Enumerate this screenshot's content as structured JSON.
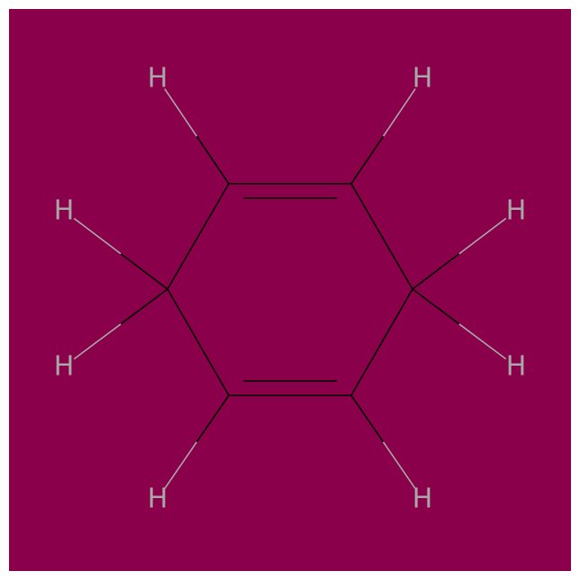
{
  "molecule": {
    "background_color": "#8b004b",
    "bond_color": "#000000",
    "hydrogen_color": "#a8a8a8",
    "atoms": [
      {
        "id": "C1",
        "element": "C",
        "label": ""
      },
      {
        "id": "C2",
        "element": "C",
        "label": ""
      },
      {
        "id": "C3",
        "element": "C",
        "label": ""
      },
      {
        "id": "C4",
        "element": "C",
        "label": ""
      },
      {
        "id": "C5",
        "element": "C",
        "label": ""
      },
      {
        "id": "C6",
        "element": "C",
        "label": ""
      },
      {
        "id": "H1",
        "element": "H",
        "label": "H"
      },
      {
        "id": "H2",
        "element": "H",
        "label": "H"
      },
      {
        "id": "H3",
        "element": "H",
        "label": "H"
      },
      {
        "id": "H4",
        "element": "H",
        "label": "H"
      },
      {
        "id": "H5",
        "element": "H",
        "label": "H"
      },
      {
        "id": "H6",
        "element": "H",
        "label": "H"
      },
      {
        "id": "H7",
        "element": "H",
        "label": "H"
      },
      {
        "id": "H8",
        "element": "H",
        "label": "H"
      }
    ],
    "bonds": [
      {
        "from": "C1",
        "to": "C2",
        "order": 2
      },
      {
        "from": "C2",
        "to": "C3",
        "order": 1
      },
      {
        "from": "C3",
        "to": "C4",
        "order": 1
      },
      {
        "from": "C4",
        "to": "C5",
        "order": 2
      },
      {
        "from": "C5",
        "to": "C6",
        "order": 1
      },
      {
        "from": "C6",
        "to": "C1",
        "order": 1
      },
      {
        "from": "C1",
        "to": "H1",
        "order": 1
      },
      {
        "from": "C2",
        "to": "H2",
        "order": 1
      },
      {
        "from": "C3",
        "to": "H3",
        "order": 1
      },
      {
        "from": "C3",
        "to": "H4",
        "order": 1
      },
      {
        "from": "C4",
        "to": "H5",
        "order": 1
      },
      {
        "from": "C5",
        "to": "H6",
        "order": 1
      },
      {
        "from": "C6",
        "to": "H7",
        "order": 1
      },
      {
        "from": "C6",
        "to": "H8",
        "order": 1
      }
    ]
  }
}
